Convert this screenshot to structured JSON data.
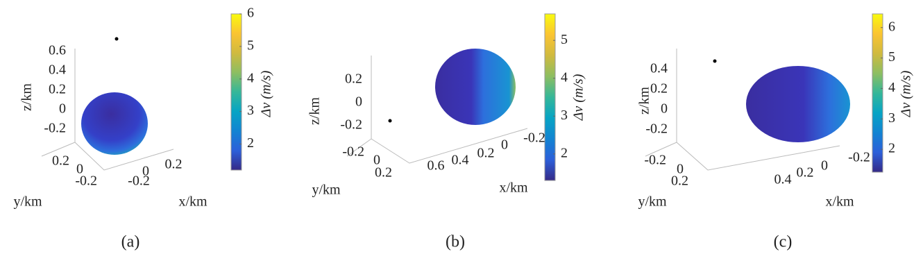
{
  "chart_data": [
    {
      "type": "surface3d",
      "panel_label": "(a)",
      "xlabel": "x/km",
      "ylabel": "y/km",
      "zlabel": "z/km",
      "xticks": [
        -0.2,
        0,
        0.2
      ],
      "yticks": [
        0.2,
        0,
        -0.2
      ],
      "zticks": [
        0.6,
        0.4,
        0.2,
        0,
        -0.2
      ],
      "colorbar_label": "Δv (m/s)",
      "clim": [
        1.2,
        6
      ],
      "cticks": [
        2,
        3,
        4,
        5,
        6
      ],
      "colormap": [
        "#352a87",
        "#2c5fd9",
        "#1284d2",
        "#07a4c4",
        "#35b799",
        "#8dbe61",
        "#d0ba3f",
        "#fbc432",
        "#f9fb0e"
      ]
    },
    {
      "type": "surface3d",
      "panel_label": "(b)",
      "xlabel": "x/km",
      "ylabel": "y/km",
      "zlabel": "z/km",
      "xticks": [
        0.6,
        0.4,
        0.2,
        0,
        -0.2
      ],
      "yticks": [
        -0.2,
        0,
        0.2
      ],
      "zticks": [
        0.2,
        0,
        -0.2
      ],
      "colorbar_label": "Δv (m/s)",
      "clim": [
        1.3,
        5.7
      ],
      "cticks": [
        2,
        3,
        4,
        5
      ],
      "colormap": [
        "#352a87",
        "#2c5fd9",
        "#1284d2",
        "#07a4c4",
        "#35b799",
        "#8dbe61",
        "#d0ba3f",
        "#fbc432",
        "#f9fb0e"
      ]
    },
    {
      "type": "surface3d",
      "panel_label": "(c)",
      "xlabel": "x/km",
      "ylabel": "y/km",
      "zlabel": "z/km",
      "xticks": [
        0.4,
        0.2,
        0,
        -0.2
      ],
      "yticks": [
        -0.2,
        0,
        0.2
      ],
      "zticks": [
        0.4,
        0.2,
        0,
        -0.2
      ],
      "colorbar_label": "Δv (m/s)",
      "clim": [
        1.25,
        6.45
      ],
      "cticks": [
        2,
        3,
        4,
        5,
        6
      ],
      "colormap": [
        "#352a87",
        "#2c5fd9",
        "#1284d2",
        "#07a4c4",
        "#35b799",
        "#8dbe61",
        "#d0ba3f",
        "#fbc432",
        "#f9fb0e"
      ]
    }
  ]
}
